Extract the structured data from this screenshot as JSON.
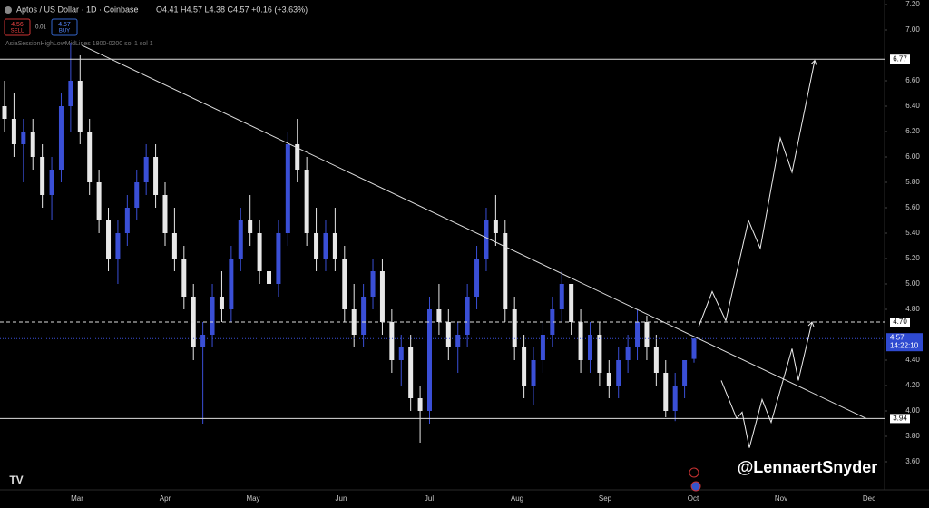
{
  "chart_data": {
    "type": "candlestick",
    "title": "Aptos / US Dollar · 1D · Coinbase",
    "ohlc_label": "O4.41 H4.57 L4.38 C4.57 +0.16 (+3.63%)",
    "sell": {
      "price": "4.56",
      "label": "SELL"
    },
    "spread": "0.01",
    "buy": {
      "price": "4.57",
      "label": "BUY"
    },
    "indicator": "AsiaSessionHighLowMidLines 1800-0200 sol 1 sol 1",
    "watermark": "@LennaertSnyder",
    "up_color": "#3a4fd6",
    "down_color": "#e8e8e8",
    "open": [
      6.4,
      6.3,
      6.1,
      6.2,
      6.0,
      5.7,
      5.9,
      6.4,
      6.6,
      6.2,
      5.8,
      5.5,
      5.2,
      5.4,
      5.6,
      5.8,
      6.0,
      5.7,
      5.4,
      5.2,
      4.9,
      4.5,
      4.6,
      4.9,
      4.8,
      5.2,
      5.5,
      5.4,
      5.1,
      5.0,
      5.4,
      6.1,
      5.9,
      5.4,
      5.2,
      5.4,
      5.2,
      4.8,
      4.6,
      4.9,
      5.1,
      4.7,
      4.4,
      4.5,
      4.1,
      4.0,
      4.8,
      4.7,
      4.5,
      4.6,
      4.9,
      5.2,
      5.5,
      5.4,
      4.8,
      4.5,
      4.2,
      4.4,
      4.6,
      4.8,
      5.0,
      4.7,
      4.4,
      4.6,
      4.3,
      4.2,
      4.4,
      4.5,
      4.7,
      4.5,
      4.3,
      4.0,
      4.2,
      4.41
    ],
    "high": [
      6.6,
      6.5,
      6.3,
      6.3,
      6.1,
      6.0,
      6.5,
      6.9,
      6.8,
      6.3,
      5.9,
      5.6,
      5.5,
      5.7,
      5.9,
      6.1,
      6.1,
      5.8,
      5.6,
      5.3,
      5.0,
      4.7,
      5.0,
      5.1,
      5.3,
      5.6,
      5.7,
      5.5,
      5.3,
      5.5,
      6.2,
      6.3,
      6.0,
      5.6,
      5.5,
      5.6,
      5.3,
      5.0,
      5.0,
      5.2,
      5.2,
      4.8,
      4.6,
      4.6,
      4.2,
      4.9,
      5.0,
      4.8,
      4.7,
      5.0,
      5.3,
      5.6,
      5.7,
      5.5,
      4.9,
      4.6,
      4.5,
      4.7,
      4.9,
      5.1,
      5.0,
      4.8,
      4.7,
      4.7,
      4.4,
      4.5,
      4.6,
      4.8,
      4.75,
      4.6,
      4.4,
      4.3,
      4.4,
      4.57
    ],
    "low": [
      6.2,
      6.0,
      5.8,
      5.9,
      5.6,
      5.5,
      5.8,
      6.2,
      6.1,
      5.7,
      5.4,
      5.1,
      5.0,
      5.3,
      5.5,
      5.7,
      5.6,
      5.3,
      5.1,
      4.8,
      4.4,
      3.9,
      4.5,
      4.7,
      4.7,
      5.1,
      5.3,
      5.0,
      4.8,
      4.9,
      5.3,
      5.8,
      5.3,
      5.1,
      5.1,
      5.1,
      4.7,
      4.5,
      4.5,
      4.8,
      4.6,
      4.3,
      4.2,
      4.0,
      3.75,
      3.9,
      4.6,
      4.4,
      4.3,
      4.5,
      4.8,
      5.1,
      5.3,
      4.7,
      4.4,
      4.1,
      4.05,
      4.3,
      4.5,
      4.7,
      4.6,
      4.3,
      4.3,
      4.2,
      4.1,
      4.1,
      4.3,
      4.4,
      4.4,
      4.2,
      3.95,
      3.92,
      4.1,
      4.38
    ],
    "close": [
      6.3,
      6.1,
      6.2,
      6.0,
      5.7,
      5.9,
      6.4,
      6.6,
      6.2,
      5.8,
      5.5,
      5.2,
      5.4,
      5.6,
      5.8,
      6.0,
      5.7,
      5.4,
      5.2,
      4.9,
      4.5,
      4.6,
      4.9,
      4.8,
      5.2,
      5.5,
      5.4,
      5.1,
      5.0,
      5.4,
      6.1,
      5.9,
      5.4,
      5.2,
      5.4,
      5.2,
      4.8,
      4.6,
      4.9,
      5.1,
      4.7,
      4.4,
      4.5,
      4.1,
      4.0,
      4.8,
      4.7,
      4.5,
      4.6,
      4.9,
      5.2,
      5.5,
      5.4,
      4.8,
      4.5,
      4.2,
      4.4,
      4.6,
      4.8,
      5.0,
      4.7,
      4.4,
      4.6,
      4.3,
      4.2,
      4.4,
      4.5,
      4.7,
      4.5,
      4.3,
      4.0,
      4.2,
      4.4,
      4.57
    ],
    "x_labels": [
      "Mar",
      "Apr",
      "May",
      "Jun",
      "Jul",
      "Aug",
      "Sep",
      "Oct",
      "Nov",
      "Dec"
    ],
    "ylim": [
      3.6,
      7.2
    ],
    "yticks": [
      {
        "value": 7.2,
        "label": "7.20"
      },
      {
        "value": 7.0,
        "label": "7.00"
      },
      {
        "value": 6.6,
        "label": "6.60"
      },
      {
        "value": 6.4,
        "label": "6.40"
      },
      {
        "value": 6.2,
        "label": "6.20"
      },
      {
        "value": 6.0,
        "label": "6.00"
      },
      {
        "value": 5.8,
        "label": "5.80"
      },
      {
        "value": 5.6,
        "label": "5.60"
      },
      {
        "value": 5.4,
        "label": "5.40"
      },
      {
        "value": 5.2,
        "label": "5.20"
      },
      {
        "value": 5.0,
        "label": "5.00"
      },
      {
        "value": 4.8,
        "label": "4.80"
      },
      {
        "value": 4.4,
        "label": "4.40"
      },
      {
        "value": 4.2,
        "label": "4.20"
      },
      {
        "value": 4.0,
        "label": "4.00"
      },
      {
        "value": 3.8,
        "label": "3.80"
      },
      {
        "value": 3.6,
        "label": "3.60"
      }
    ],
    "levels": [
      {
        "value": 6.77,
        "label": "6.77",
        "dashed": false
      },
      {
        "value": 4.7,
        "label": "4.70",
        "dashed": true
      },
      {
        "value": 3.94,
        "label": "3.94",
        "dashed": false
      }
    ],
    "last_price": {
      "value": 4.57,
      "label": "4.57",
      "countdown": "14:22:10"
    },
    "trendline": [
      6.88,
      3.94
    ],
    "projections": [
      [
        4.66,
        4.94,
        4.71,
        5.5,
        5.28,
        6.15,
        5.88,
        6.76
      ],
      [
        4.24,
        3.94,
        3.99,
        3.71,
        4.09,
        3.91,
        4.49,
        4.24,
        4.7
      ]
    ]
  }
}
